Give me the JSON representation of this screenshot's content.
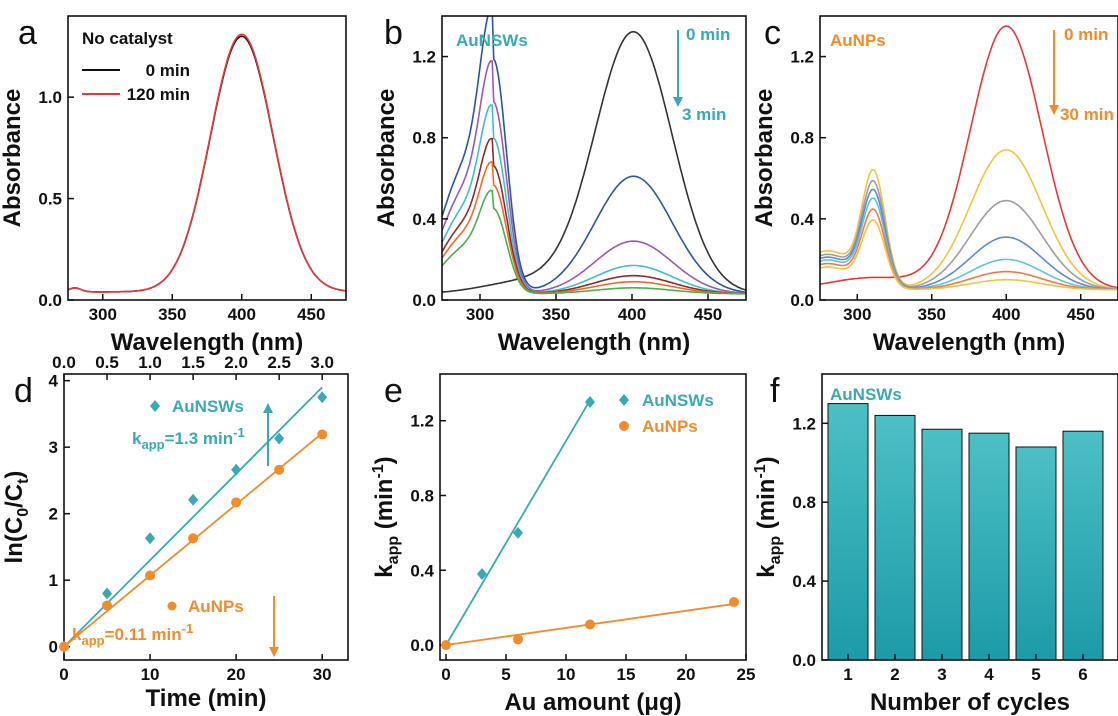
{
  "chart_data": [
    {
      "panel": "a",
      "type": "line",
      "xlabel": "Wavelength (nm)",
      "ylabel": "Absorbance",
      "xlim": [
        275,
        475
      ],
      "ylim": [
        0,
        1.4
      ],
      "xticks": [
        "300",
        "350",
        "400",
        "450"
      ],
      "yticks": [
        "0.0",
        "0.5",
        "1.0"
      ],
      "legend_title": "No catalyst",
      "series": [
        {
          "name": "0 min",
          "color": "#111111",
          "peak_nm": 400,
          "peak": 1.3,
          "width": 32,
          "base": 0.04
        },
        {
          "name": "120 min",
          "color": "#e53935",
          "peak_nm": 400,
          "peak": 1.31,
          "width": 32,
          "base": 0.04
        }
      ]
    },
    {
      "panel": "b",
      "type": "line",
      "xlabel": "Wavelength (nm)",
      "ylabel": "Absorbance",
      "xlim": [
        275,
        475
      ],
      "ylim": [
        0,
        1.4
      ],
      "xticks": [
        "300",
        "350",
        "400",
        "450"
      ],
      "yticks": [
        "0.0",
        "0.4",
        "0.8",
        "1.2"
      ],
      "title": "AuNSWs",
      "arrow_labels": [
        "0 min",
        "3 min"
      ],
      "series": [
        {
          "color": "#333333",
          "peak400": 1.29,
          "peak310": 0.0
        },
        {
          "color": "#2855a6",
          "peak400": 0.58,
          "peak310": 1.1
        },
        {
          "color": "#9b59b6",
          "peak400": 0.26,
          "peak310": 0.9
        },
        {
          "color": "#3fbfc7",
          "peak400": 0.14,
          "peak310": 0.73
        },
        {
          "color": "#8b2b2b",
          "peak400": 0.09,
          "peak310": 0.6
        },
        {
          "color": "#ee6a2c",
          "peak400": 0.06,
          "peak310": 0.51
        },
        {
          "color": "#4cae4c",
          "peak400": 0.03,
          "peak310": 0.4
        }
      ]
    },
    {
      "panel": "c",
      "type": "line",
      "xlabel": "Wavelength (nm)",
      "ylabel": "Absorbance",
      "xlim": [
        275,
        475
      ],
      "ylim": [
        0,
        1.4
      ],
      "xticks": [
        "300",
        "350",
        "400",
        "450"
      ],
      "yticks": [
        "0.0",
        "0.4",
        "0.8",
        "1.2"
      ],
      "title": "AuNPs",
      "arrow_labels": [
        "0 min",
        "30 min"
      ],
      "series": [
        {
          "color": "#e53935",
          "peak400": 1.3,
          "peak310": 0.0
        },
        {
          "color": "#f5c242",
          "peak400": 0.69,
          "peak310": 0.55
        },
        {
          "color": "#9e9e9e",
          "peak400": 0.44,
          "peak310": 0.5
        },
        {
          "color": "#5b8bd0",
          "peak400": 0.26,
          "peak310": 0.46
        },
        {
          "color": "#62c2dc",
          "peak400": 0.15,
          "peak310": 0.42
        },
        {
          "color": "#f07a45",
          "peak400": 0.09,
          "peak310": 0.37
        },
        {
          "color": "#f5c242",
          "peak400": 0.05,
          "peak310": 0.32
        }
      ]
    },
    {
      "panel": "d",
      "type": "scatter",
      "xlabel": "Time (min)",
      "ylabel": "ln(C0/Ct)",
      "xlim": [
        0,
        33
      ],
      "ylim": [
        -0.2,
        4.1
      ],
      "xticks": [
        "0",
        "10",
        "20",
        "30"
      ],
      "top_xlim": [
        0,
        3.3
      ],
      "top_xticks": [
        "0.0",
        "0.5",
        "1.0",
        "1.5",
        "2.0",
        "2.5",
        "3.0"
      ],
      "yticks": [
        "0",
        "1",
        "2",
        "3",
        "4"
      ],
      "series": [
        {
          "name": "AuNSWs",
          "label": "k",
          "label_sub": "app",
          "label_rest": "=1.3 min",
          "label_sup": "-1",
          "color": "#3aa9b5",
          "marker": "diamond",
          "axis": "top",
          "x": [
            0,
            0.5,
            1.0,
            1.5,
            2.0,
            2.5,
            3.0
          ],
          "y": [
            0,
            0.8,
            1.63,
            2.21,
            2.66,
            3.13,
            3.75
          ],
          "fit_slope": 1.3
        },
        {
          "name": "AuNPs",
          "label": "k",
          "label_sub": "app",
          "label_rest": "=0.11 min",
          "label_sup": "-1",
          "color": "#f08c2c",
          "marker": "circle",
          "axis": "bottom",
          "x": [
            0,
            5,
            10,
            15,
            20,
            25,
            30
          ],
          "y": [
            0,
            0.62,
            1.07,
            1.63,
            2.17,
            2.66,
            3.19
          ],
          "fit_slope": 0.107
        }
      ]
    },
    {
      "panel": "e",
      "type": "scatter",
      "xlabel": "Au amount (μg)",
      "ylabel": "k",
      "ylabel_sub": "app",
      "ylabel_unit": "(min",
      "ylabel_sup": "-1",
      "xlim": [
        -0.5,
        25
      ],
      "ylim": [
        -0.08,
        1.45
      ],
      "xticks": [
        "0",
        "5",
        "10",
        "15",
        "20",
        "25"
      ],
      "yticks": [
        "0.0",
        "0.4",
        "0.8",
        "1.2"
      ],
      "series": [
        {
          "name": "AuNSWs",
          "color": "#3aa9b5",
          "marker": "diamond",
          "x": [
            3,
            6,
            12
          ],
          "y": [
            0.38,
            0.6,
            1.3
          ],
          "fit": [
            [
              0,
              0
            ],
            [
              12,
              1.31
            ]
          ]
        },
        {
          "name": "AuNPs",
          "color": "#f08c2c",
          "marker": "circle",
          "x": [
            0,
            6,
            12,
            24
          ],
          "y": [
            0,
            0.03,
            0.11,
            0.23
          ],
          "fit": [
            [
              0,
              0.0
            ],
            [
              24,
              0.22
            ]
          ]
        }
      ]
    },
    {
      "panel": "f",
      "type": "bar",
      "title": "AuNSWs",
      "xlabel": "Number of cycles",
      "ylabel": "k",
      "ylabel_sub": "app",
      "ylabel_unit": "(min",
      "ylabel_sup": "-1",
      "categories": [
        "1",
        "2",
        "3",
        "4",
        "5",
        "6"
      ],
      "values": [
        1.3,
        1.24,
        1.17,
        1.15,
        1.08,
        1.16
      ],
      "ylim": [
        0,
        1.45
      ],
      "yticks": [
        "0.0",
        "0.4",
        "0.8",
        "1.2"
      ],
      "color": "#2aa5ae"
    }
  ]
}
